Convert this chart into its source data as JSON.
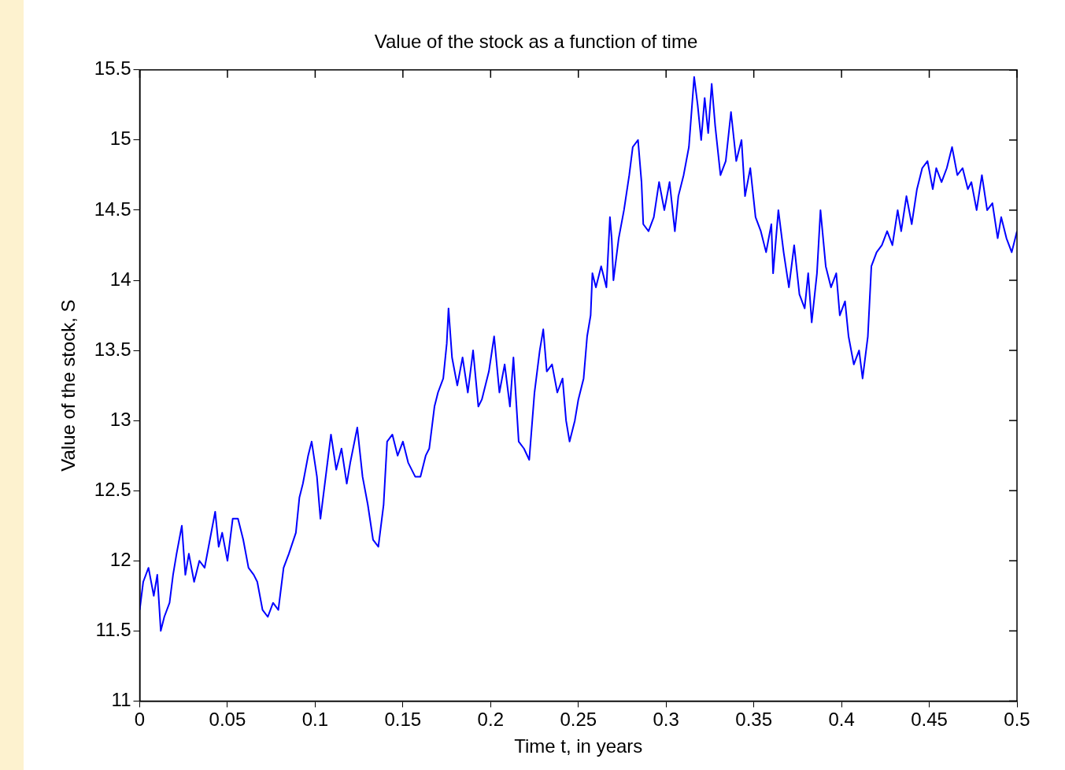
{
  "chart_data": {
    "type": "line",
    "title": "Value of the stock as a function of time",
    "xlabel": "Time t, in years",
    "ylabel": "Value of the stock, S",
    "xlim": [
      0,
      0.5
    ],
    "xticks": [
      0,
      0.05,
      0.1,
      0.15,
      0.2,
      0.25,
      0.3,
      0.35,
      0.4,
      0.45,
      0.5
    ],
    "ylim": [
      11,
      15.5
    ],
    "yticks": [
      11,
      11.5,
      12,
      12.5,
      13,
      13.5,
      14,
      14.5,
      15,
      15.5
    ],
    "grid": false,
    "legend": false,
    "marker": "none",
    "line_style": "solid",
    "series": [
      {
        "color": "#0000ff",
        "x": [
          0,
          0.002,
          0.005,
          0.008,
          0.01,
          0.012,
          0.014,
          0.017,
          0.019,
          0.021,
          0.024,
          0.026,
          0.028,
          0.031,
          0.034,
          0.037,
          0.04,
          0.043,
          0.045,
          0.047,
          0.05,
          0.053,
          0.056,
          0.059,
          0.062,
          0.065,
          0.067,
          0.07,
          0.073,
          0.076,
          0.079,
          0.082,
          0.085,
          0.089,
          0.091,
          0.093,
          0.096,
          0.098,
          0.101,
          0.103,
          0.106,
          0.109,
          0.112,
          0.115,
          0.118,
          0.12,
          0.124,
          0.127,
          0.13,
          0.133,
          0.136,
          0.139,
          0.141,
          0.144,
          0.147,
          0.15,
          0.153,
          0.157,
          0.16,
          0.163,
          0.165,
          0.168,
          0.17,
          0.173,
          0.175,
          0.176,
          0.178,
          0.181,
          0.184,
          0.187,
          0.19,
          0.193,
          0.195,
          0.199,
          0.202,
          0.205,
          0.208,
          0.211,
          0.213,
          0.216,
          0.219,
          0.222,
          0.225,
          0.228,
          0.23,
          0.232,
          0.235,
          0.238,
          0.241,
          0.243,
          0.245,
          0.248,
          0.25,
          0.253,
          0.255,
          0.257,
          0.258,
          0.26,
          0.263,
          0.266,
          0.268,
          0.269,
          0.27,
          0.273,
          0.276,
          0.279,
          0.281,
          0.284,
          0.286,
          0.287,
          0.29,
          0.293,
          0.296,
          0.299,
          0.302,
          0.305,
          0.307,
          0.31,
          0.313,
          0.316,
          0.318,
          0.32,
          0.322,
          0.324,
          0.326,
          0.328,
          0.331,
          0.334,
          0.337,
          0.34,
          0.343,
          0.345,
          0.348,
          0.351,
          0.354,
          0.357,
          0.36,
          0.361,
          0.364,
          0.367,
          0.37,
          0.373,
          0.376,
          0.379,
          0.381,
          0.383,
          0.386,
          0.388,
          0.391,
          0.394,
          0.397,
          0.399,
          0.402,
          0.404,
          0.407,
          0.41,
          0.412,
          0.415,
          0.417,
          0.42,
          0.423,
          0.426,
          0.429,
          0.432,
          0.434,
          0.437,
          0.44,
          0.443,
          0.446,
          0.449,
          0.452,
          0.454,
          0.457,
          0.46,
          0.463,
          0.466,
          0.469,
          0.472,
          0.474,
          0.477,
          0.48,
          0.483,
          0.486,
          0.489,
          0.491,
          0.494,
          0.497,
          0.5
        ],
        "values": [
          11.65,
          11.85,
          11.95,
          11.75,
          11.9,
          11.5,
          11.6,
          11.7,
          11.9,
          12.05,
          12.25,
          11.9,
          12.05,
          11.85,
          12.0,
          11.95,
          12.15,
          12.35,
          12.1,
          12.2,
          12.0,
          12.3,
          12.3,
          12.15,
          11.95,
          11.9,
          11.85,
          11.65,
          11.6,
          11.7,
          11.65,
          11.95,
          12.05,
          12.2,
          12.45,
          12.55,
          12.75,
          12.85,
          12.6,
          12.3,
          12.6,
          12.9,
          12.65,
          12.8,
          12.55,
          12.7,
          12.95,
          12.6,
          12.4,
          12.15,
          12.1,
          12.4,
          12.85,
          12.9,
          12.75,
          12.85,
          12.7,
          12.6,
          12.6,
          12.75,
          12.8,
          13.1,
          13.2,
          13.3,
          13.55,
          13.8,
          13.45,
          13.25,
          13.45,
          13.2,
          13.5,
          13.1,
          13.15,
          13.35,
          13.6,
          13.2,
          13.4,
          13.1,
          13.45,
          12.85,
          12.8,
          12.72,
          13.2,
          13.5,
          13.65,
          13.35,
          13.4,
          13.2,
          13.3,
          13.0,
          12.85,
          13.0,
          13.15,
          13.3,
          13.6,
          13.75,
          14.05,
          13.95,
          14.1,
          13.95,
          14.45,
          14.3,
          14.0,
          14.3,
          14.5,
          14.75,
          14.95,
          15.0,
          14.7,
          14.4,
          14.35,
          14.45,
          14.7,
          14.5,
          14.7,
          14.35,
          14.6,
          14.75,
          14.95,
          15.45,
          15.25,
          15.0,
          15.3,
          15.05,
          15.4,
          15.1,
          14.75,
          14.85,
          15.2,
          14.85,
          15.0,
          14.6,
          14.8,
          14.45,
          14.35,
          14.2,
          14.4,
          14.05,
          14.5,
          14.2,
          13.95,
          14.25,
          13.9,
          13.8,
          14.05,
          13.7,
          14.05,
          14.5,
          14.1,
          13.95,
          14.05,
          13.75,
          13.85,
          13.6,
          13.4,
          13.5,
          13.3,
          13.6,
          14.1,
          14.2,
          14.25,
          14.35,
          14.25,
          14.5,
          14.35,
          14.6,
          14.4,
          14.65,
          14.8,
          14.85,
          14.65,
          14.8,
          14.7,
          14.8,
          14.95,
          14.75,
          14.8,
          14.65,
          14.7,
          14.5,
          14.75,
          14.5,
          14.55,
          14.3,
          14.45,
          14.3,
          14.2,
          14.35
        ]
      }
    ]
  }
}
